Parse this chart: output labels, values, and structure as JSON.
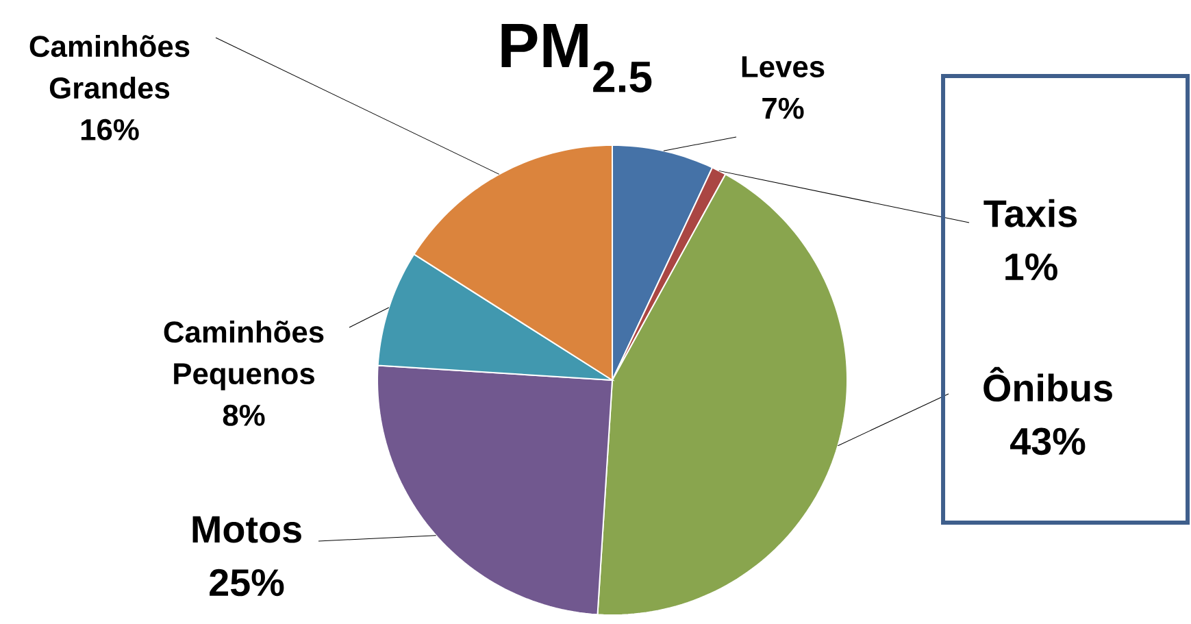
{
  "chart_data": {
    "type": "pie",
    "title": "PM$_{2.5}$",
    "categories": [
      "Leves",
      "Taxis",
      "Ônibus",
      "Motos",
      "Caminhões Pequenos",
      "Caminhões Grandes"
    ],
    "values": [
      7,
      1,
      43,
      25,
      8,
      16
    ],
    "value_labels": [
      "7%",
      "1%",
      "43%",
      "25%",
      "8%",
      "16%"
    ],
    "colors": [
      "#4572a7",
      "#aa4643",
      "#89a54e",
      "#71588f",
      "#4198af",
      "#db843d"
    ]
  }
}
